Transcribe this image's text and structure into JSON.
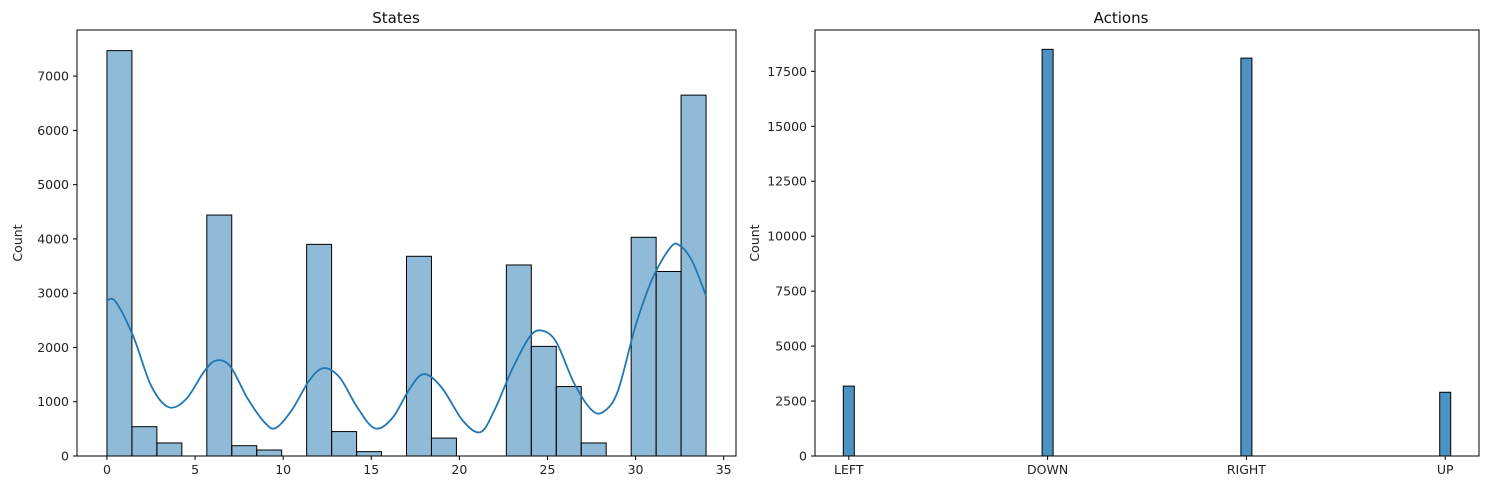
{
  "chart_data": [
    {
      "type": "bar",
      "title": "States",
      "xlabel": "",
      "ylabel": "Count",
      "xlim": [
        -1.7,
        35.7
      ],
      "ylim": [
        0,
        7850
      ],
      "grid": false,
      "bar_color": "#1f77b4",
      "bar_alpha": 0.5,
      "edge_color": "#000000",
      "kde_color": "#1f77b4",
      "xticks": [
        0,
        5,
        10,
        15,
        20,
        25,
        30,
        35
      ],
      "yticks": [
        0,
        1000,
        2000,
        3000,
        4000,
        5000,
        6000,
        7000
      ],
      "bins": [
        {
          "x0": 0.0,
          "x1": 1.417,
          "value": 7470
        },
        {
          "x0": 1.417,
          "x1": 2.833,
          "value": 540
        },
        {
          "x0": 2.833,
          "x1": 4.25,
          "value": 240
        },
        {
          "x0": 4.25,
          "x1": 5.667,
          "value": 0
        },
        {
          "x0": 5.667,
          "x1": 7.083,
          "value": 4440
        },
        {
          "x0": 7.083,
          "x1": 8.5,
          "value": 190
        },
        {
          "x0": 8.5,
          "x1": 9.917,
          "value": 110
        },
        {
          "x0": 9.917,
          "x1": 11.333,
          "value": 0
        },
        {
          "x0": 11.333,
          "x1": 12.75,
          "value": 3900
        },
        {
          "x0": 12.75,
          "x1": 14.167,
          "value": 450
        },
        {
          "x0": 14.167,
          "x1": 15.583,
          "value": 80
        },
        {
          "x0": 15.583,
          "x1": 17.0,
          "value": 0
        },
        {
          "x0": 17.0,
          "x1": 18.417,
          "value": 3680
        },
        {
          "x0": 18.417,
          "x1": 19.833,
          "value": 330
        },
        {
          "x0": 19.833,
          "x1": 21.25,
          "value": 0
        },
        {
          "x0": 21.25,
          "x1": 22.667,
          "value": 0
        },
        {
          "x0": 22.667,
          "x1": 24.083,
          "value": 3520
        },
        {
          "x0": 24.083,
          "x1": 25.5,
          "value": 2020
        },
        {
          "x0": 25.5,
          "x1": 26.917,
          "value": 1280
        },
        {
          "x0": 26.917,
          "x1": 28.333,
          "value": 240
        },
        {
          "x0": 28.333,
          "x1": 29.75,
          "value": 0
        },
        {
          "x0": 29.75,
          "x1": 31.167,
          "value": 4030
        },
        {
          "x0": 31.167,
          "x1": 32.583,
          "value": 3400
        },
        {
          "x0": 32.583,
          "x1": 34.0,
          "value": 6650
        }
      ],
      "kde": {
        "x": [
          0,
          0.5,
          1.5,
          2.5,
          3.5,
          4.5,
          5.5,
          6.2,
          7.0,
          8.0,
          9.0,
          9.6,
          10.5,
          11.5,
          12.3,
          13.2,
          14.2,
          15.2,
          16.2,
          17.2,
          18.0,
          19.0,
          20.2,
          21.2,
          22.0,
          23.0,
          24.0,
          24.7,
          25.5,
          26.5,
          27.5,
          28.2,
          29.0,
          30.0,
          31.0,
          32.0,
          32.5,
          33.2,
          34.0
        ],
        "y": [
          2870,
          2840,
          2200,
          1300,
          900,
          1050,
          1550,
          1760,
          1650,
          1050,
          600,
          520,
          850,
          1400,
          1620,
          1450,
          900,
          510,
          700,
          1250,
          1510,
          1260,
          650,
          440,
          850,
          1600,
          2200,
          2310,
          2100,
          1350,
          850,
          820,
          1200,
          2400,
          3300,
          3850,
          3880,
          3600,
          2950
        ]
      }
    },
    {
      "type": "bar",
      "title": "Actions",
      "xlabel": "",
      "ylabel": "Count",
      "grid": false,
      "bar_color": "#1f77b4",
      "bar_alpha": 0.8,
      "edge_color": "#000000",
      "ylim": [
        0,
        19380
      ],
      "yticks": [
        0,
        2500,
        5000,
        7500,
        10000,
        12500,
        15000,
        17500
      ],
      "categories": [
        "LEFT",
        "DOWN",
        "RIGHT",
        "UP"
      ],
      "values": [
        3180,
        18500,
        18100,
        2900
      ]
    }
  ]
}
